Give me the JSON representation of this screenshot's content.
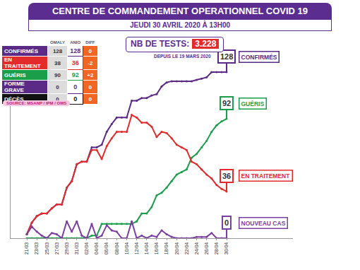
{
  "header": {
    "title": "CENTRE DE COMMANDEMENT OPERATIONNEL COVID 19",
    "subtitle": "JEUDI 30 AVRIL 2020 À 13H00"
  },
  "table": {
    "columns": [
      "OMALY",
      "ANIO",
      "DIFF"
    ],
    "rows": [
      {
        "label": "CONFIRMÉS",
        "color": "#5b2a86",
        "cells": [
          "128",
          "128",
          "0"
        ]
      },
      {
        "label": "EN TRAITEMENT",
        "color": "#e32b2b",
        "cells": [
          "38",
          "36",
          "-2"
        ]
      },
      {
        "label": "GUÉRIS",
        "color": "#1a9e4a",
        "cells": [
          "90",
          "92",
          "+2"
        ]
      },
      {
        "label": "FORME GRAVE",
        "color": "#5b2a86",
        "cells": [
          "0",
          "0",
          "0"
        ]
      },
      {
        "label": "DÉCÈS",
        "color": "#111111",
        "cells": [
          "0",
          "0",
          "0"
        ]
      }
    ],
    "source": "SOURCE: MSANP / IPM / OMS"
  },
  "tests": {
    "label": "NB DE TESTS:",
    "value": "3.228",
    "note": "DEPUIS LE 19 MARS 2020"
  },
  "chart_data": {
    "type": "line",
    "categories": [
      "21/03",
      null,
      "23/03",
      null,
      "25/03",
      null,
      "27/03",
      null,
      "29/03",
      null,
      "31/03",
      null,
      "02/04",
      null,
      "04/04",
      null,
      "06/04",
      null,
      "08/04",
      null,
      "10/04",
      null,
      "12/04",
      null,
      "14/04",
      null,
      "16/04",
      null,
      "18/04",
      null,
      "20/04",
      null,
      "22/04",
      null,
      "24/04",
      null,
      "26/04",
      null,
      "28/04",
      null,
      "30/04"
    ],
    "series": [
      {
        "name": "CONFIRMÉS",
        "color": "#5b2a86",
        "values": [
          3,
          12,
          17,
          19,
          19,
          23,
          26,
          26,
          39,
          44,
          57,
          59,
          59,
          70,
          70,
          72,
          82,
          88,
          93,
          93,
          93,
          106,
          106,
          108,
          108,
          110,
          111,
          117,
          120,
          121,
          121,
          121,
          121,
          121,
          122,
          123,
          124,
          128,
          128,
          128,
          128
        ]
      },
      {
        "name": "GUÉRIS",
        "color": "#1a9e4a",
        "values": [
          0,
          0,
          0,
          0,
          0,
          0,
          0,
          0,
          0,
          0,
          0,
          0,
          0,
          2,
          2,
          11,
          11,
          11,
          11,
          11,
          11,
          11,
          13,
          19,
          19,
          24,
          33,
          35,
          39,
          44,
          49,
          51,
          53,
          62,
          65,
          70,
          75,
          82,
          87,
          90,
          92
        ]
      },
      {
        "name": "EN TRAITEMENT",
        "color": "#e32b2b",
        "values": [
          3,
          12,
          17,
          19,
          19,
          23,
          26,
          26,
          39,
          44,
          57,
          59,
          59,
          68,
          68,
          61,
          71,
          77,
          82,
          82,
          82,
          95,
          93,
          89,
          89,
          86,
          78,
          82,
          81,
          77,
          72,
          70,
          68,
          59,
          57,
          53,
          49,
          46,
          41,
          38,
          36
        ]
      },
      {
        "name": "NOUVEAU CAS",
        "color": "#7b3fa0",
        "values": [
          3,
          9,
          5,
          2,
          0,
          4,
          3,
          0,
          13,
          5,
          13,
          2,
          0,
          11,
          0,
          2,
          10,
          6,
          5,
          0,
          0,
          13,
          0,
          2,
          0,
          2,
          1,
          6,
          3,
          1,
          0,
          0,
          0,
          0,
          1,
          1,
          1,
          4,
          0,
          0,
          0
        ]
      }
    ],
    "ylim": [
      0,
      140
    ],
    "grid": false,
    "tick_labels": "x",
    "marker": "circle"
  }
}
